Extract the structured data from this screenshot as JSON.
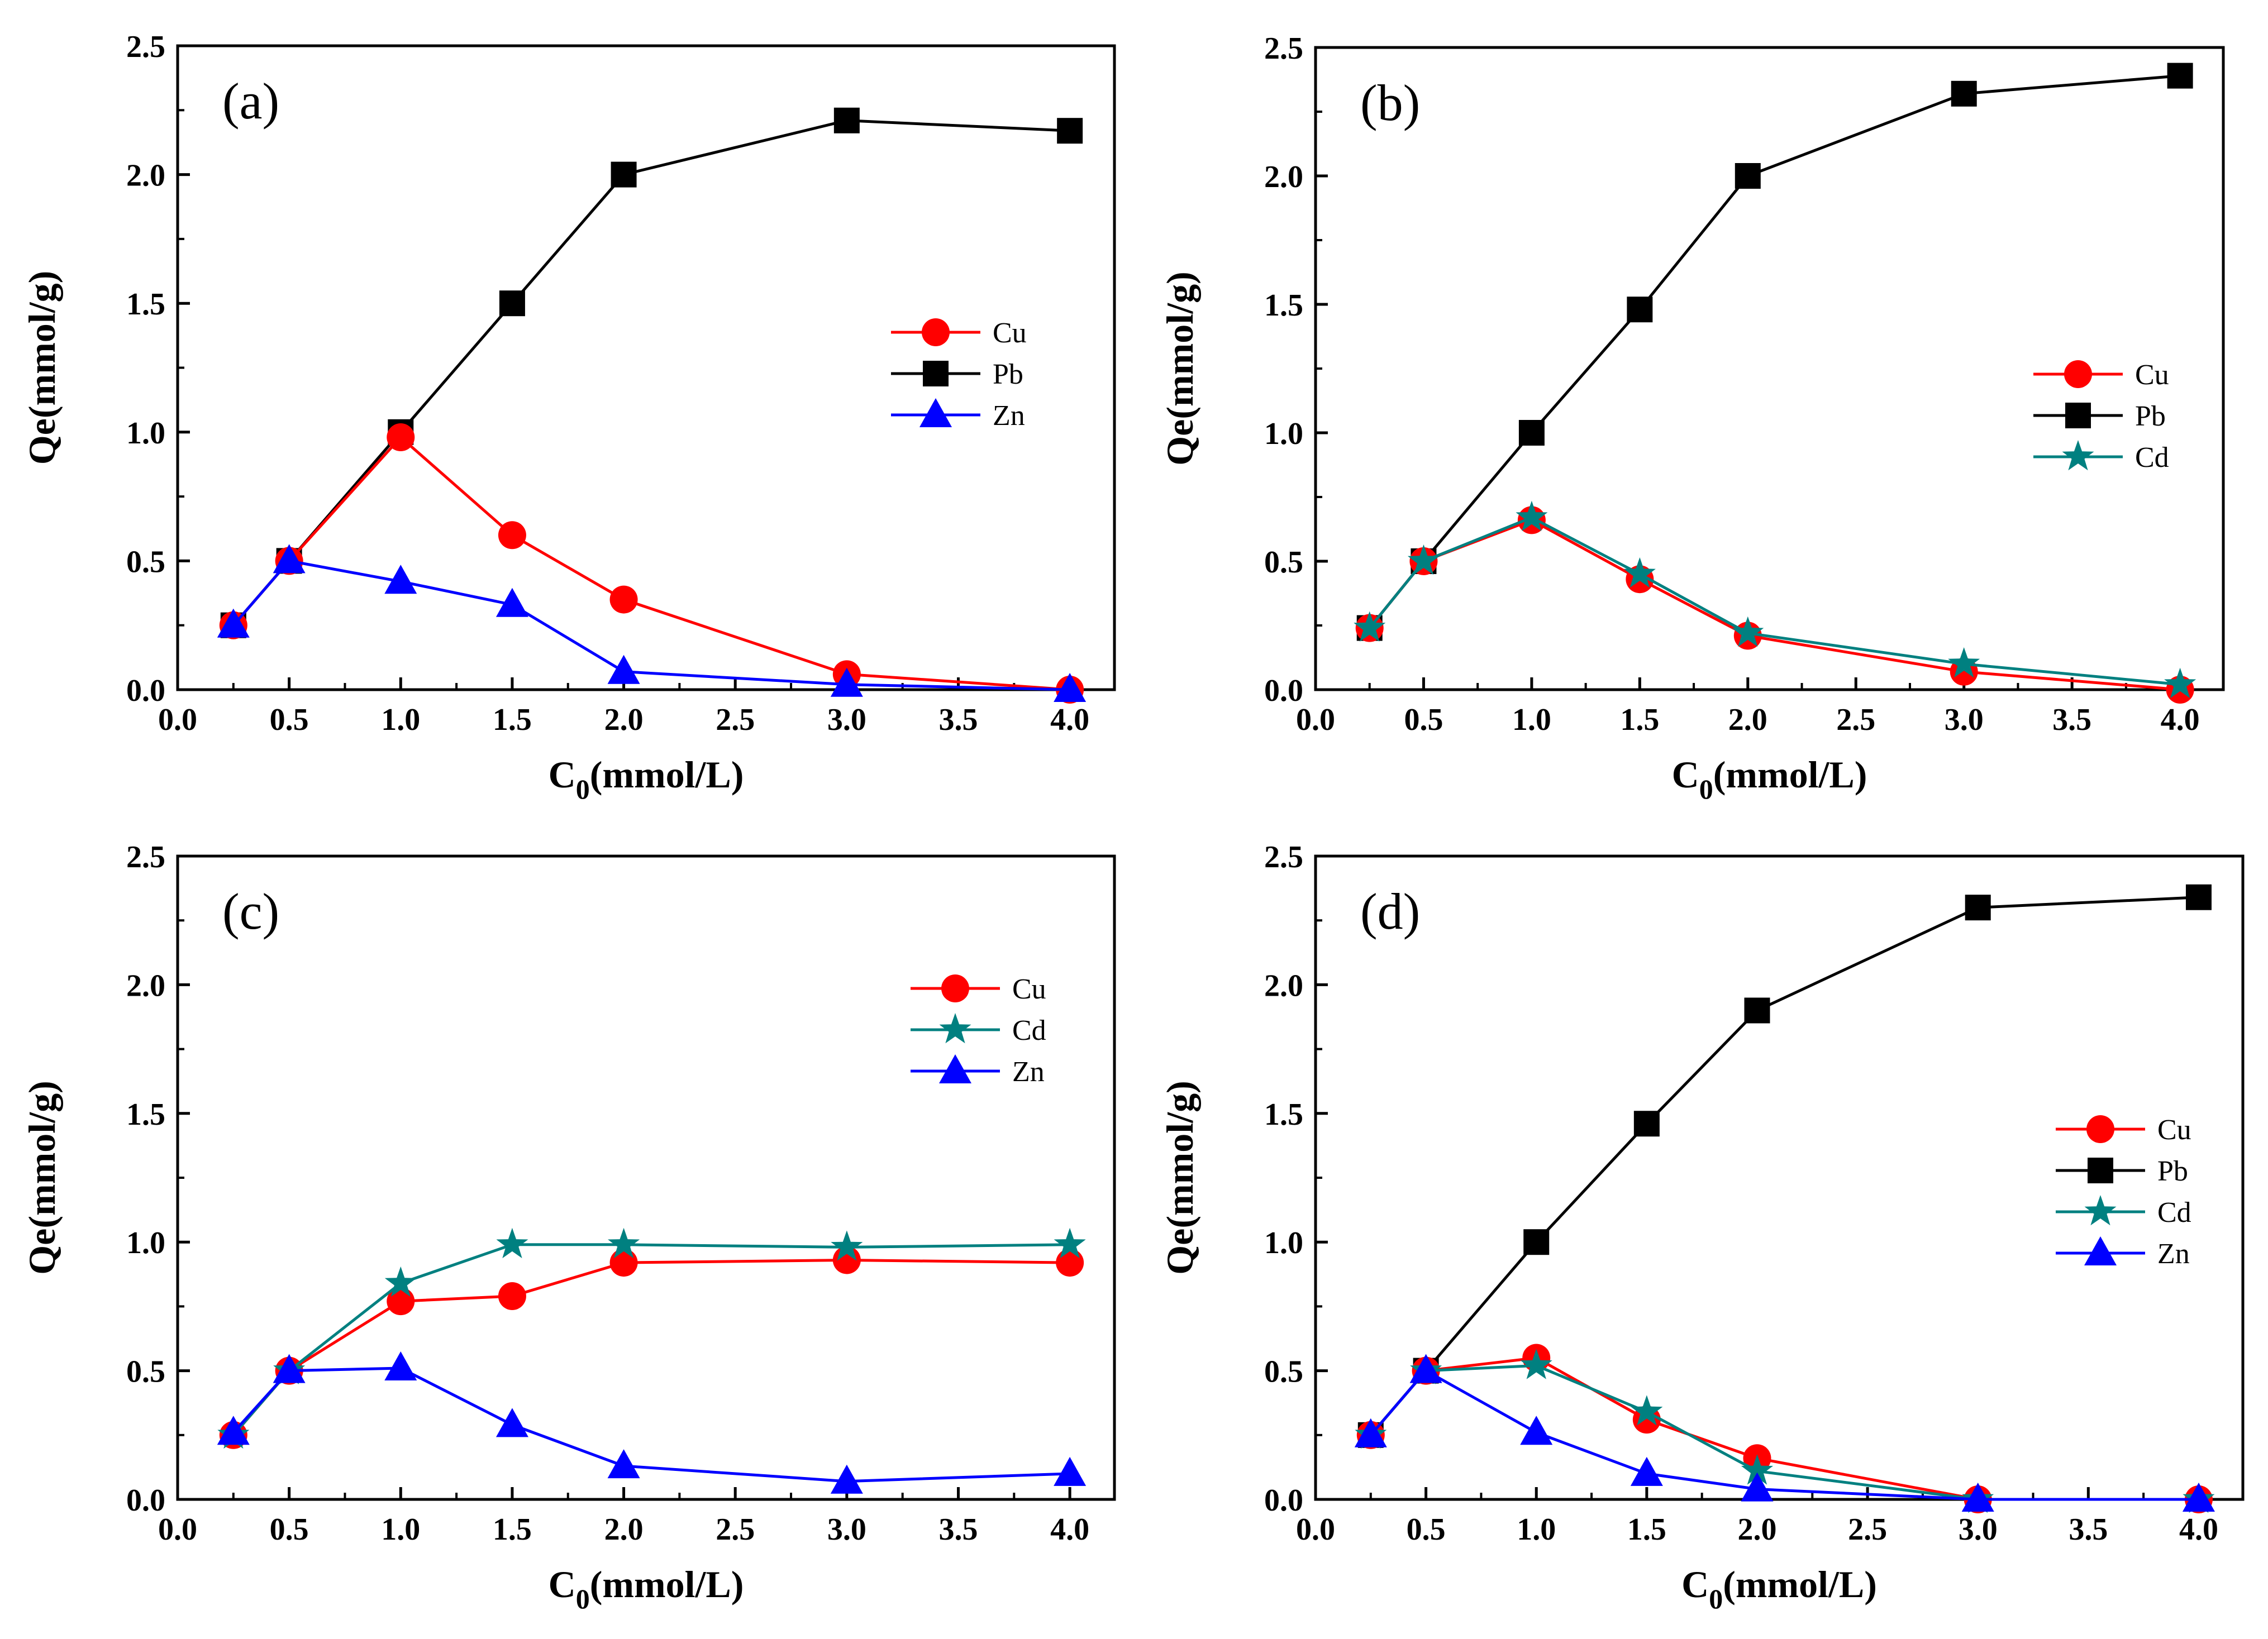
{
  "colors": {
    "Cu": "#ff0000",
    "Pb": "#000000",
    "Zn": "#0000ff",
    "Cd": "#008080"
  },
  "chart_data": [
    {
      "type": "line",
      "panel": "(a)",
      "xlabel": "C0(mmol/L)",
      "xlabel_main": "C",
      "xlabel_sub": "0",
      "xlabel_rest": "(mmol/L)",
      "ylabel": "Qe(mmol/g)",
      "xlim": [
        0.0,
        4.2
      ],
      "ylim": [
        0.0,
        2.5
      ],
      "xticks": [
        "0.0",
        "0.5",
        "1.0",
        "1.5",
        "2.0",
        "2.5",
        "3.0",
        "3.5",
        "4.0"
      ],
      "yticks": [
        "0.0",
        "0.5",
        "1.0",
        "1.5",
        "2.0",
        "2.5"
      ],
      "legend_position": "right",
      "x": [
        0.25,
        0.5,
        1.0,
        1.5,
        2.0,
        3.0,
        4.0
      ],
      "series": [
        {
          "name": "Cu",
          "marker": "circle",
          "values": [
            0.25,
            0.5,
            0.98,
            0.6,
            0.35,
            0.06,
            0.0
          ]
        },
        {
          "name": "Pb",
          "marker": "square",
          "values": [
            0.25,
            0.5,
            1.0,
            1.5,
            2.0,
            2.21,
            2.17
          ]
        },
        {
          "name": "Zn",
          "marker": "triangle",
          "values": [
            0.25,
            0.5,
            0.42,
            0.33,
            0.07,
            0.02,
            0.0
          ]
        }
      ]
    },
    {
      "type": "line",
      "panel": "(b)",
      "xlabel": "C0(mmol/L)",
      "xlabel_main": "C",
      "xlabel_sub": "0",
      "xlabel_rest": "(mmol/L)",
      "ylabel": "Qe(mmol/g)",
      "xlim": [
        0.0,
        4.2
      ],
      "ylim": [
        0.0,
        2.5
      ],
      "xticks": [
        "0.0",
        "0.5",
        "1.0",
        "1.5",
        "2.0",
        "2.5",
        "3.0",
        "3.5",
        "4.0"
      ],
      "yticks": [
        "0.0",
        "0.5",
        "1.0",
        "1.5",
        "2.0",
        "2.5"
      ],
      "legend_position": "right",
      "x": [
        0.25,
        0.5,
        1.0,
        1.5,
        2.0,
        3.0,
        4.0
      ],
      "series": [
        {
          "name": "Cu",
          "marker": "circle",
          "values": [
            0.24,
            0.5,
            0.66,
            0.43,
            0.21,
            0.07,
            0.0
          ]
        },
        {
          "name": "Pb",
          "marker": "square",
          "values": [
            0.24,
            0.5,
            1.0,
            1.48,
            2.0,
            2.32,
            2.39
          ]
        },
        {
          "name": "Cd",
          "marker": "star",
          "values": [
            0.24,
            0.5,
            0.67,
            0.45,
            0.22,
            0.1,
            0.02
          ]
        }
      ]
    },
    {
      "type": "line",
      "panel": "(c)",
      "xlabel": "C0(mmol/L)",
      "xlabel_main": "C",
      "xlabel_sub": "0",
      "xlabel_rest": "(mmol/L)",
      "ylabel": "Qe(mmol/g)",
      "xlim": [
        0.0,
        4.2
      ],
      "ylim": [
        0.0,
        2.5
      ],
      "xticks": [
        "0.0",
        "0.5",
        "1.0",
        "1.5",
        "2.0",
        "2.5",
        "3.0",
        "3.5",
        "4.0"
      ],
      "yticks": [
        "0.0",
        "0.5",
        "1.0",
        "1.5",
        "2.0",
        "2.5"
      ],
      "legend_position": "right",
      "x": [
        0.25,
        0.5,
        1.0,
        1.5,
        2.0,
        3.0,
        4.0
      ],
      "series": [
        {
          "name": "Cu",
          "marker": "circle",
          "values": [
            0.25,
            0.5,
            0.77,
            0.79,
            0.92,
            0.93,
            0.92
          ]
        },
        {
          "name": "Cd",
          "marker": "star",
          "values": [
            0.25,
            0.5,
            0.84,
            0.99,
            0.99,
            0.98,
            0.99
          ]
        },
        {
          "name": "Zn",
          "marker": "triangle",
          "values": [
            0.26,
            0.5,
            0.51,
            0.29,
            0.13,
            0.07,
            0.1
          ]
        }
      ]
    },
    {
      "type": "line",
      "panel": "(d)",
      "xlabel": "C0(mmol/L)",
      "xlabel_main": "C",
      "xlabel_sub": "0",
      "xlabel_rest": "(mmol/L)",
      "ylabel": "Qe(mmol/g)",
      "xlim": [
        0.0,
        4.2
      ],
      "ylim": [
        0.0,
        2.5
      ],
      "xticks": [
        "0.0",
        "0.5",
        "1.0",
        "1.5",
        "2.0",
        "2.5",
        "3.0",
        "3.5",
        "4.0"
      ],
      "yticks": [
        "0.0",
        "0.5",
        "1.0",
        "1.5",
        "2.0",
        "2.5"
      ],
      "legend_position": "right",
      "x": [
        0.25,
        0.5,
        1.0,
        1.5,
        2.0,
        3.0,
        4.0
      ],
      "series": [
        {
          "name": "Cu",
          "marker": "circle",
          "values": [
            0.25,
            0.5,
            0.55,
            0.31,
            0.16,
            0.0,
            0.0
          ]
        },
        {
          "name": "Pb",
          "marker": "square",
          "values": [
            0.25,
            0.5,
            1.0,
            1.46,
            1.9,
            2.3,
            2.34
          ]
        },
        {
          "name": "Cd",
          "marker": "star",
          "values": [
            0.25,
            0.5,
            0.52,
            0.34,
            0.11,
            0.0,
            0.0
          ]
        },
        {
          "name": "Zn",
          "marker": "triangle",
          "values": [
            0.25,
            0.5,
            0.26,
            0.1,
            0.04,
            0.0,
            0.0
          ]
        }
      ]
    }
  ]
}
